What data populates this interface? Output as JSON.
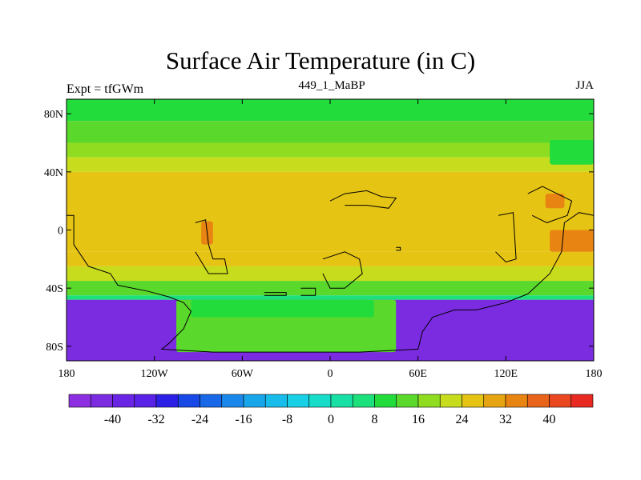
{
  "chart_data": {
    "type": "heatmap",
    "title": "Surface Air Temperature (in C)",
    "left_string": "Expt = tfGWm",
    "center_string": "449_1_MaBP",
    "right_string": "JJA",
    "x_ticks": [
      {
        "value": -180,
        "label": "180"
      },
      {
        "value": -120,
        "label": "120W"
      },
      {
        "value": -60,
        "label": "60W"
      },
      {
        "value": 0,
        "label": "0"
      },
      {
        "value": 60,
        "label": "60E"
      },
      {
        "value": 120,
        "label": "120E"
      },
      {
        "value": 180,
        "label": "180"
      }
    ],
    "y_ticks": [
      {
        "value": 80,
        "label": "80N"
      },
      {
        "value": 40,
        "label": "40N"
      },
      {
        "value": 0,
        "label": "0"
      },
      {
        "value": -40,
        "label": "40S"
      },
      {
        "value": -80,
        "label": "80S"
      }
    ],
    "xlim": [
      -180,
      180
    ],
    "ylim": [
      -90,
      90
    ],
    "colorbar": {
      "levels": [
        -48,
        -44,
        -40,
        -36,
        -32,
        -28,
        -24,
        -20,
        -16,
        -12,
        -8,
        -4,
        0,
        4,
        8,
        12,
        16,
        20,
        24,
        28,
        32,
        36,
        40,
        44,
        48
      ],
      "colors": [
        "#8c2fe0",
        "#7b2be0",
        "#6a24e3",
        "#5a22e6",
        "#2d20e6",
        "#1848e6",
        "#1868e8",
        "#1a88ea",
        "#18a6ea",
        "#18bcea",
        "#18d0e6",
        "#16dcc8",
        "#18e0a4",
        "#1ce07c",
        "#22dc3c",
        "#5ad82c",
        "#90dc20",
        "#c8dc1e",
        "#e6c414",
        "#e6a412",
        "#e88412",
        "#e8641a",
        "#ea4620",
        "#e82a22"
      ],
      "labels": [
        {
          "value": -40,
          "label": "-40"
        },
        {
          "value": -32,
          "label": "-32"
        },
        {
          "value": -24,
          "label": "-24"
        },
        {
          "value": -16,
          "label": "-16"
        },
        {
          "value": -8,
          "label": "-8"
        },
        {
          "value": 0,
          "label": "0"
        },
        {
          "value": 8,
          "label": "8"
        },
        {
          "value": 16,
          "label": "16"
        },
        {
          "value": 24,
          "label": "24"
        },
        {
          "value": 32,
          "label": "32"
        },
        {
          "value": 40,
          "label": "40"
        }
      ]
    },
    "zonal_bands": [
      {
        "lat": [
          75,
          90
        ],
        "value": 8
      },
      {
        "lat": [
          60,
          75
        ],
        "value": 12
      },
      {
        "lat": [
          50,
          60
        ],
        "value": 16
      },
      {
        "lat": [
          40,
          50
        ],
        "value": 20
      },
      {
        "lat": [
          30,
          40
        ],
        "value": 24
      },
      {
        "lat": [
          -15,
          30
        ],
        "value": 26
      },
      {
        "lat": [
          -25,
          -15
        ],
        "value": 24
      },
      {
        "lat": [
          -35,
          -25
        ],
        "value": 20
      },
      {
        "lat": [
          -45,
          -35
        ],
        "value": 14
      },
      {
        "lat": [
          -48,
          -45
        ],
        "value": 6
      },
      {
        "lat": [
          -90,
          -48
        ],
        "value": -44
      }
    ],
    "features": [
      {
        "name": "ocean-gap-temperature",
        "value": 12,
        "lon": [
          -105,
          45
        ],
        "lat": [
          -84,
          -48
        ]
      },
      {
        "name": "ocean-gap-warm",
        "value": 8,
        "lon": [
          -95,
          30
        ],
        "lat": [
          -60,
          -48
        ]
      },
      {
        "name": "warm-spot-africa",
        "value": 32,
        "lon": [
          -88,
          -80
        ],
        "lat": [
          -10,
          6
        ]
      },
      {
        "name": "warm-spot-asia",
        "value": 32,
        "lon": [
          147,
          160
        ],
        "lat": [
          15,
          25
        ]
      },
      {
        "name": "warm-spot-pacific",
        "value": 34,
        "lon": [
          150,
          180
        ],
        "lat": [
          -15,
          0
        ]
      },
      {
        "name": "arctic-cool-pocket",
        "value": 8,
        "lon": [
          150,
          180
        ],
        "lat": [
          45,
          62
        ]
      }
    ],
    "land_outlines": [
      {
        "name": "continent-west",
        "points": [
          [
            -180,
            10
          ],
          [
            -175,
            10
          ],
          [
            -175,
            -10
          ],
          [
            -165,
            -25
          ],
          [
            -150,
            -30
          ],
          [
            -145,
            -38
          ],
          [
            -125,
            -42
          ],
          [
            -110,
            -46
          ],
          [
            -100,
            -50
          ],
          [
            -95,
            -56
          ],
          [
            -100,
            -68
          ],
          [
            -110,
            -78
          ],
          [
            -115,
            -82
          ],
          [
            -80,
            -84
          ],
          [
            -45,
            -84
          ],
          [
            20,
            -84
          ],
          [
            60,
            -82
          ],
          [
            63,
            -70
          ],
          [
            70,
            -60
          ],
          [
            85,
            -55
          ],
          [
            100,
            -55
          ],
          [
            120,
            -50
          ],
          [
            135,
            -44
          ],
          [
            150,
            -30
          ],
          [
            158,
            -15
          ],
          [
            160,
            5
          ],
          [
            170,
            12
          ],
          [
            180,
            10
          ]
        ]
      },
      {
        "name": "continent-central",
        "points": [
          [
            -92,
            5
          ],
          [
            -85,
            7
          ],
          [
            -83,
            -10
          ],
          [
            -80,
            -20
          ],
          [
            -72,
            -20
          ],
          [
            -70,
            -30
          ],
          [
            -83,
            -30
          ],
          [
            -92,
            -15
          ]
        ]
      },
      {
        "name": "island-central-south",
        "points": [
          [
            -45,
            -43
          ],
          [
            -30,
            -43
          ],
          [
            -30,
            -45
          ],
          [
            -45,
            -45
          ]
        ]
      },
      {
        "name": "island-south-mid",
        "points": [
          [
            -20,
            -40
          ],
          [
            -10,
            -40
          ],
          [
            -10,
            -45
          ],
          [
            -20,
            -45
          ]
        ]
      },
      {
        "name": "continent-east-central",
        "points": [
          [
            -5,
            -20
          ],
          [
            10,
            -15
          ],
          [
            20,
            -20
          ],
          [
            22,
            -30
          ],
          [
            10,
            -40
          ],
          [
            0,
            -40
          ],
          [
            -5,
            -30
          ]
        ]
      },
      {
        "name": "continent-north",
        "points": [
          [
            0,
            20
          ],
          [
            10,
            25
          ],
          [
            25,
            27
          ],
          [
            35,
            23
          ],
          [
            45,
            22
          ],
          [
            40,
            15
          ],
          [
            25,
            17
          ],
          [
            10,
            17
          ]
        ]
      },
      {
        "name": "continent-asia",
        "points": [
          [
            115,
            10
          ],
          [
            125,
            12
          ],
          [
            127,
            -20
          ],
          [
            120,
            -22
          ],
          [
            113,
            -15
          ]
        ]
      },
      {
        "name": "continent-pacific-east",
        "points": [
          [
            135,
            25
          ],
          [
            145,
            30
          ],
          [
            165,
            20
          ],
          [
            162,
            10
          ],
          [
            148,
            5
          ],
          [
            138,
            10
          ]
        ]
      },
      {
        "name": "small-island",
        "points": [
          [
            45,
            -12
          ],
          [
            48,
            -12
          ],
          [
            48,
            -14
          ],
          [
            45,
            -14
          ]
        ]
      }
    ]
  }
}
